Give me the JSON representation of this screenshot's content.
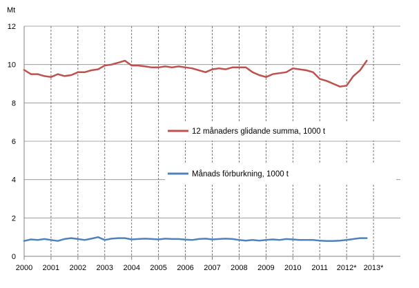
{
  "chart_data": {
    "type": "line",
    "title": "",
    "xlabel": "",
    "ylabel": "Mt",
    "ylim": [
      0,
      12
    ],
    "yticks": [
      "0",
      "2",
      "4",
      "6",
      "8",
      "10",
      "12"
    ],
    "xtick_labels": [
      "2000",
      "2001",
      "2002",
      "2003",
      "2004",
      "2005",
      "2006",
      "2007",
      "2008",
      "2009",
      "2010",
      "2011",
      "2012*",
      "2013*"
    ],
    "x_start": 2000.0,
    "x_step": 0.25,
    "grid": {
      "horizontal": true,
      "vertical_dashed_at_years": true
    },
    "legend_placement": "center-right inside plot",
    "series": [
      {
        "name": "12 månaders glidande summa, 1000 t",
        "color": "#c0504d",
        "values": [
          9.72,
          9.5,
          9.5,
          9.4,
          9.35,
          9.5,
          9.4,
          9.45,
          9.6,
          9.6,
          9.7,
          9.75,
          9.95,
          10.0,
          10.1,
          10.2,
          9.95,
          9.95,
          9.9,
          9.85,
          9.85,
          9.9,
          9.85,
          9.9,
          9.85,
          9.8,
          9.7,
          9.6,
          9.75,
          9.8,
          9.75,
          9.85,
          9.85,
          9.85,
          9.6,
          9.45,
          9.35,
          9.5,
          9.55,
          9.6,
          9.8,
          9.75,
          9.7,
          9.6,
          9.25,
          9.15,
          9.0,
          8.85,
          8.9,
          9.4,
          9.7,
          10.2
        ]
      },
      {
        "name": "Månads förburkning, 1000 t",
        "color": "#4f81bd",
        "values": [
          0.8,
          0.88,
          0.85,
          0.9,
          0.85,
          0.8,
          0.9,
          0.95,
          0.9,
          0.85,
          0.92,
          1.0,
          0.85,
          0.92,
          0.95,
          0.95,
          0.88,
          0.9,
          0.92,
          0.9,
          0.88,
          0.92,
          0.9,
          0.9,
          0.87,
          0.85,
          0.9,
          0.92,
          0.88,
          0.9,
          0.92,
          0.9,
          0.85,
          0.82,
          0.85,
          0.82,
          0.85,
          0.88,
          0.85,
          0.9,
          0.88,
          0.85,
          0.85,
          0.85,
          0.82,
          0.8,
          0.8,
          0.82,
          0.85,
          0.9,
          0.95,
          0.95
        ]
      }
    ]
  }
}
